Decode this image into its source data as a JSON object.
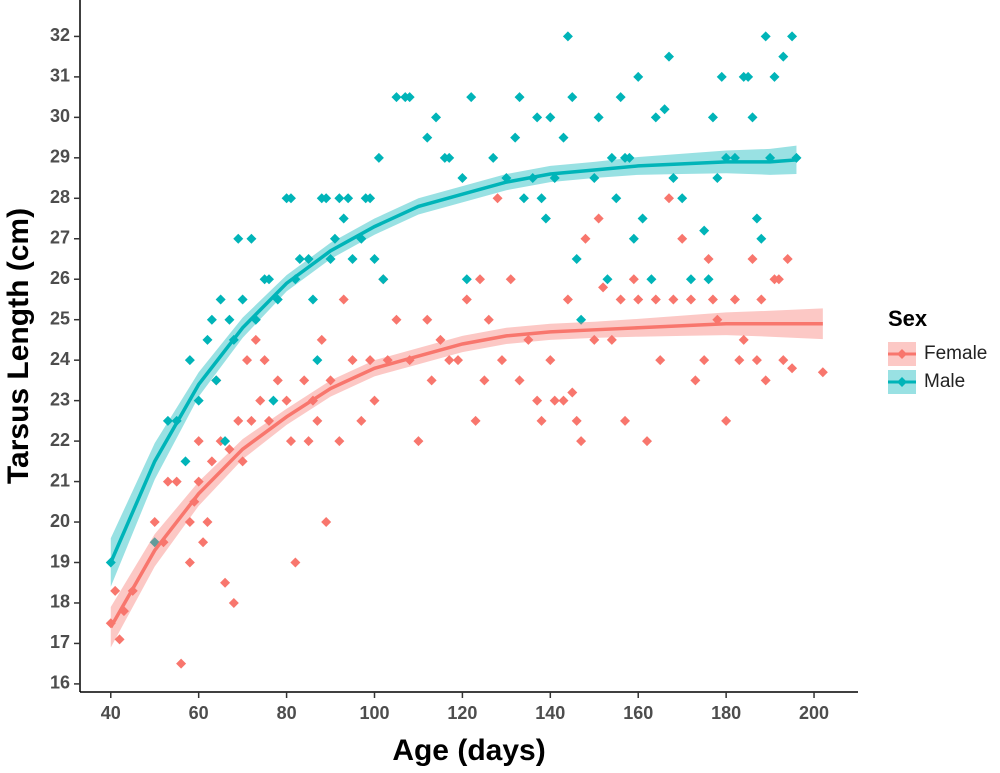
{
  "chart_data": {
    "type": "scatter",
    "x_label": "Age (days)",
    "y_label": "Tarsus Length (cm)",
    "legend_title": "Sex",
    "legend_position": "right",
    "xlim": [
      33,
      210
    ],
    "xticks": [
      40,
      60,
      80,
      100,
      120,
      140,
      160,
      180,
      200
    ],
    "ylim": [
      15.8,
      32.9
    ],
    "yticks": [
      16,
      17,
      18,
      19,
      20,
      21,
      22,
      23,
      24,
      25,
      26,
      27,
      28,
      29,
      30,
      31,
      32
    ],
    "series": [
      {
        "name": "Female",
        "color": "#f8766d",
        "x": [
          40,
          41,
          42,
          43,
          45,
          50,
          52,
          53,
          55,
          56,
          58,
          58,
          59,
          60,
          60,
          61,
          62,
          63,
          64,
          65,
          66,
          67,
          68,
          69,
          70,
          71,
          72,
          73,
          74,
          75,
          76,
          78,
          80,
          81,
          82,
          84,
          85,
          86,
          87,
          88,
          89,
          90,
          92,
          93,
          95,
          97,
          99,
          100,
          102,
          103,
          105,
          108,
          110,
          112,
          113,
          115,
          117,
          119,
          121,
          123,
          124,
          125,
          126,
          128,
          129,
          131,
          133,
          135,
          137,
          138,
          140,
          141,
          143,
          144,
          145,
          146,
          147,
          148,
          150,
          151,
          152,
          154,
          156,
          157,
          159,
          160,
          162,
          164,
          165,
          167,
          168,
          170,
          172,
          173,
          175,
          176,
          177,
          178,
          180,
          182,
          183,
          184,
          186,
          187,
          188,
          189,
          191,
          192,
          193,
          194,
          195,
          202
        ],
        "values": [
          17.5,
          18.3,
          17.1,
          17.8,
          18.3,
          20,
          19.5,
          21,
          21,
          16.5,
          19,
          20,
          20.5,
          22,
          21,
          19.5,
          20,
          21.5,
          23.5,
          22,
          18.5,
          21.8,
          18,
          22.5,
          21.5,
          24,
          22.5,
          24.5,
          23,
          24,
          22.5,
          23.5,
          23,
          22,
          19,
          23.5,
          22,
          23,
          22.5,
          24.5,
          20,
          23.5,
          22,
          25.5,
          24,
          22.5,
          24,
          23,
          26,
          24,
          25,
          24,
          22,
          25,
          23.5,
          24.5,
          24,
          24,
          25.5,
          22.5,
          26,
          23.5,
          25,
          28,
          24,
          26,
          23.5,
          24.5,
          23,
          22.5,
          24,
          23,
          23,
          25.5,
          23.2,
          22.5,
          22,
          27,
          24.5,
          27.5,
          25.8,
          24.5,
          25.5,
          22.5,
          26,
          25.5,
          22,
          25.5,
          24,
          28,
          25.5,
          27,
          25.5,
          23.5,
          24,
          26.5,
          25.5,
          25,
          22.5,
          25.5,
          24,
          24.5,
          26.5,
          24,
          25.5,
          23.5,
          26,
          26,
          24,
          26.5,
          23.8,
          23.7
        ],
        "fit": {
          "x": [
            40,
            50,
            60,
            70,
            80,
            90,
            100,
            110,
            120,
            130,
            140,
            150,
            160,
            170,
            180,
            190,
            202
          ],
          "values": [
            17.4,
            19.3,
            20.7,
            21.8,
            22.6,
            23.3,
            23.8,
            24.1,
            24.4,
            24.6,
            24.7,
            24.75,
            24.8,
            24.85,
            24.9,
            24.9,
            24.9
          ],
          "lower": [
            16.9,
            18.9,
            20.4,
            21.55,
            22.4,
            23.1,
            23.6,
            23.9,
            24.2,
            24.4,
            24.5,
            24.55,
            24.58,
            24.6,
            24.62,
            24.58,
            24.52
          ],
          "upper": [
            17.9,
            19.7,
            21.0,
            22.05,
            22.8,
            23.5,
            24.0,
            24.3,
            24.6,
            24.8,
            24.9,
            24.95,
            25.02,
            25.1,
            25.18,
            25.22,
            25.28
          ]
        }
      },
      {
        "name": "Male",
        "color": "#00b4b8",
        "x": [
          40,
          50,
          53,
          55,
          57,
          58,
          60,
          62,
          63,
          64,
          65,
          66,
          67,
          68,
          69,
          70,
          72,
          73,
          75,
          76,
          77,
          78,
          80,
          81,
          82,
          83,
          85,
          86,
          87,
          88,
          89,
          90,
          91,
          92,
          93,
          94,
          95,
          97,
          98,
          99,
          100,
          101,
          102,
          105,
          107,
          108,
          112,
          114,
          116,
          117,
          120,
          121,
          122,
          127,
          130,
          132,
          133,
          134,
          136,
          137,
          138,
          139,
          140,
          141,
          143,
          144,
          145,
          146,
          147,
          150,
          151,
          153,
          154,
          155,
          156,
          157,
          158,
          159,
          160,
          161,
          163,
          164,
          166,
          167,
          168,
          170,
          172,
          175,
          176,
          177,
          178,
          179,
          180,
          182,
          184,
          185,
          186,
          187,
          188,
          189,
          190,
          191,
          193,
          195,
          196
        ],
        "values": [
          19,
          19.5,
          22.5,
          22.5,
          21.5,
          24,
          23,
          24.5,
          25,
          23.5,
          25.5,
          22,
          25,
          24.5,
          27,
          25.5,
          27,
          25,
          26,
          26,
          23,
          25.5,
          28,
          28,
          26,
          26.5,
          26.5,
          25.5,
          24,
          28,
          28,
          26.5,
          27,
          28,
          27.5,
          28,
          26.5,
          27,
          28,
          28,
          26.5,
          29,
          26,
          30.5,
          30.5,
          30.5,
          29.5,
          30,
          29,
          29,
          28.5,
          26,
          30.5,
          29,
          28.5,
          29.5,
          30.5,
          28,
          28.5,
          30,
          28,
          27.5,
          30,
          28.5,
          29.5,
          32,
          30.5,
          26.5,
          25,
          28.5,
          30,
          26,
          29,
          28,
          30.5,
          29,
          29,
          27,
          31,
          27.5,
          26,
          30,
          30.2,
          31.5,
          28.5,
          28,
          26,
          27.2,
          26,
          30,
          28.5,
          31,
          29,
          29,
          31,
          31,
          30,
          27.5,
          27,
          32,
          29,
          31,
          31.5,
          32,
          29
        ],
        "fit": {
          "x": [
            40,
            50,
            60,
            70,
            80,
            90,
            100,
            110,
            120,
            130,
            140,
            150,
            160,
            170,
            180,
            190,
            196
          ],
          "values": [
            19.0,
            21.5,
            23.4,
            24.8,
            25.9,
            26.7,
            27.3,
            27.8,
            28.1,
            28.4,
            28.6,
            28.7,
            28.8,
            28.85,
            28.9,
            28.9,
            28.95
          ],
          "lower": [
            18.4,
            21.05,
            23.1,
            24.55,
            25.7,
            26.5,
            27.1,
            27.6,
            27.9,
            28.2,
            28.4,
            28.5,
            28.58,
            28.6,
            28.62,
            28.58,
            28.6
          ],
          "upper": [
            19.6,
            21.95,
            23.7,
            25.05,
            26.1,
            26.9,
            27.5,
            28.0,
            28.3,
            28.6,
            28.8,
            28.9,
            29.02,
            29.1,
            29.18,
            29.22,
            29.3
          ]
        }
      }
    ]
  }
}
